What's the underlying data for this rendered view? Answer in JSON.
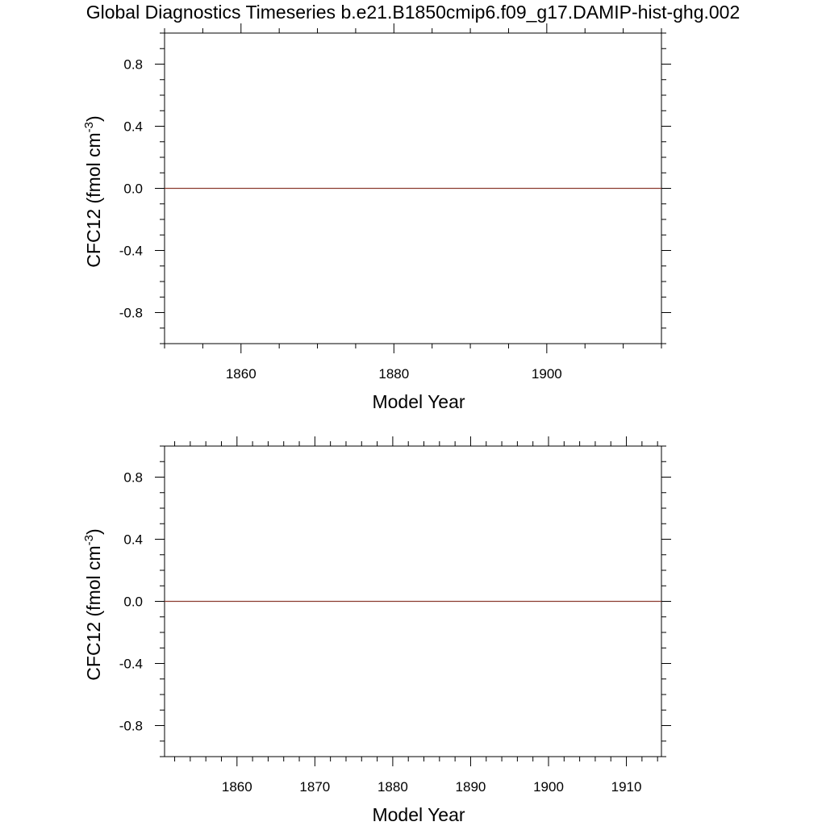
{
  "title": "Global Diagnostics Timeseries b.e21.B1850cmip6.f09_g17.DAMIP-hist-ghg.002",
  "colors": {
    "line": "#8b3a2e",
    "axis": "#000000"
  },
  "chart_data": [
    {
      "type": "line",
      "xlabel": "Model Year",
      "ylabel": "CFC12 (fmol cm",
      "ylabel_sup": "-3",
      "ylabel_close": ")",
      "xlim": [
        1850,
        1915
      ],
      "ylim": [
        -1.0,
        1.0
      ],
      "x_ticks": [
        1860,
        1880,
        1900
      ],
      "x_tick_labels": [
        "1860",
        "1880",
        "1900"
      ],
      "x_minor_step": 5,
      "y_ticks": [
        0.8,
        0.4,
        0.0,
        -0.4,
        -0.8
      ],
      "y_tick_labels": [
        "0.8",
        "0.4",
        "0.0",
        "-0.4",
        "-0.8"
      ],
      "y_minor_step": 0.1,
      "grid": false,
      "series": [
        {
          "x": [
            1850,
            1915
          ],
          "y": [
            0.0,
            0.0
          ]
        }
      ]
    },
    {
      "type": "line",
      "xlabel": "Model Year",
      "ylabel": "CFC12 (fmol cm",
      "ylabel_sup": "-3",
      "ylabel_close": ")",
      "xlim": [
        1850.7,
        1914.5
      ],
      "ylim": [
        -1.0,
        1.0
      ],
      "x_ticks": [
        1860,
        1870,
        1880,
        1890,
        1900,
        1910
      ],
      "x_tick_labels": [
        "1860",
        "1870",
        "1880",
        "1890",
        "1900",
        "1910"
      ],
      "x_minor_step": 2,
      "y_ticks": [
        0.8,
        0.4,
        0.0,
        -0.4,
        -0.8
      ],
      "y_tick_labels": [
        "0.8",
        "0.4",
        "0.0",
        "-0.4",
        "-0.8"
      ],
      "y_minor_step": 0.1,
      "grid": false,
      "series": [
        {
          "x": [
            1850.7,
            1914.5
          ],
          "y": [
            0.0,
            0.0
          ]
        }
      ]
    }
  ]
}
